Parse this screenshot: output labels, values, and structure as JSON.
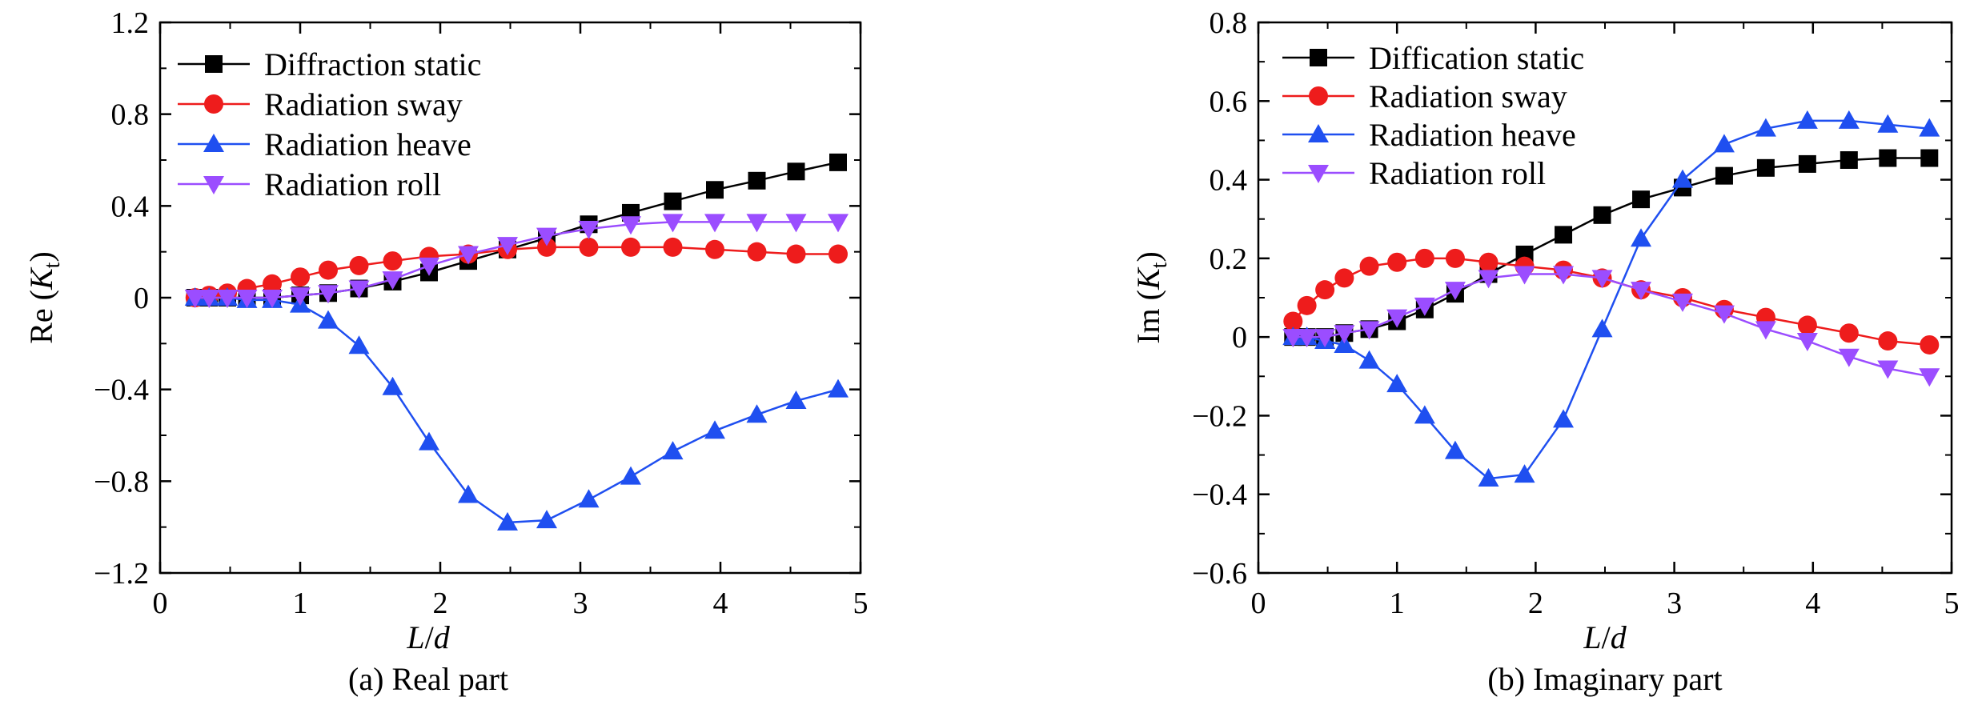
{
  "chart_data": [
    {
      "type": "line",
      "caption": "(a) Real part",
      "xlabel": "L/d",
      "ylabel": "Re (Kt)",
      "xlim": [
        0,
        5
      ],
      "ylim": [
        -1.2,
        1.2
      ],
      "xticks": [
        0,
        1,
        2,
        3,
        4,
        5
      ],
      "yticks": [
        -1.2,
        -0.8,
        -0.4,
        0,
        0.4,
        0.8,
        1.2
      ],
      "xtick_labels": [
        "0",
        "1",
        "2",
        "3",
        "4",
        "5"
      ],
      "ytick_labels": [
        "−1.2",
        "−0.8",
        "−0.4",
        "0",
        "0.4",
        "0.8",
        "1.2"
      ],
      "legend_position": "top-left",
      "series": [
        {
          "name": "Diffraction static",
          "color": "#000000",
          "marker": "square",
          "x": [
            0.25,
            0.35,
            0.48,
            0.62,
            0.8,
            1.0,
            1.2,
            1.42,
            1.66,
            1.92,
            2.2,
            2.48,
            2.76,
            3.06,
            3.36,
            3.66,
            3.96,
            4.26,
            4.54,
            4.84
          ],
          "y": [
            0.0,
            0.0,
            0.0,
            0.0,
            0.0,
            0.01,
            0.02,
            0.04,
            0.07,
            0.11,
            0.16,
            0.21,
            0.26,
            0.32,
            0.37,
            0.42,
            0.47,
            0.51,
            0.55,
            0.59
          ]
        },
        {
          "name": "Radiation sway",
          "color": "#ee1c1c",
          "marker": "circle",
          "x": [
            0.25,
            0.35,
            0.48,
            0.62,
            0.8,
            1.0,
            1.2,
            1.42,
            1.66,
            1.92,
            2.2,
            2.48,
            2.76,
            3.06,
            3.36,
            3.66,
            3.96,
            4.26,
            4.54,
            4.84
          ],
          "y": [
            0.0,
            0.01,
            0.02,
            0.04,
            0.06,
            0.09,
            0.12,
            0.14,
            0.16,
            0.18,
            0.19,
            0.21,
            0.22,
            0.22,
            0.22,
            0.22,
            0.21,
            0.2,
            0.19,
            0.19
          ]
        },
        {
          "name": "Radiation heave",
          "color": "#1f4ff0",
          "marker": "triangle-up",
          "x": [
            0.25,
            0.35,
            0.48,
            0.62,
            0.8,
            1.0,
            1.2,
            1.42,
            1.66,
            1.92,
            2.2,
            2.48,
            2.76,
            3.06,
            3.36,
            3.66,
            3.96,
            4.26,
            4.54,
            4.84
          ],
          "y": [
            0.0,
            0.0,
            0.0,
            -0.01,
            -0.01,
            -0.03,
            -0.1,
            -0.21,
            -0.39,
            -0.63,
            -0.86,
            -0.98,
            -0.97,
            -0.88,
            -0.78,
            -0.67,
            -0.58,
            -0.51,
            -0.45,
            -0.4
          ]
        },
        {
          "name": "Radiation roll",
          "color": "#9b4dff",
          "marker": "triangle-down",
          "x": [
            0.25,
            0.35,
            0.48,
            0.62,
            0.8,
            1.0,
            1.2,
            1.42,
            1.66,
            1.92,
            2.2,
            2.48,
            2.76,
            3.06,
            3.36,
            3.66,
            3.96,
            4.26,
            4.54,
            4.84
          ],
          "y": [
            0.0,
            0.0,
            0.0,
            0.0,
            0.0,
            0.01,
            0.02,
            0.04,
            0.08,
            0.14,
            0.19,
            0.23,
            0.27,
            0.3,
            0.32,
            0.33,
            0.33,
            0.33,
            0.33,
            0.33
          ]
        }
      ]
    },
    {
      "type": "line",
      "caption": "(b) Imaginary part",
      "xlabel": "L/d",
      "ylabel": "Im (Kt)",
      "xlim": [
        0,
        5
      ],
      "ylim": [
        -0.6,
        0.8
      ],
      "xticks": [
        0,
        1,
        2,
        3,
        4,
        5
      ],
      "yticks": [
        -0.6,
        -0.4,
        -0.2,
        0,
        0.2,
        0.4,
        0.6,
        0.8
      ],
      "xtick_labels": [
        "0",
        "1",
        "2",
        "3",
        "4",
        "5"
      ],
      "ytick_labels": [
        "−0.6",
        "−0.4",
        "−0.2",
        "0",
        "0.2",
        "0.4",
        "0.6",
        "0.8"
      ],
      "legend_position": "top-left",
      "series": [
        {
          "name": "Diffication static",
          "color": "#000000",
          "marker": "square",
          "x": [
            0.25,
            0.35,
            0.48,
            0.62,
            0.8,
            1.0,
            1.2,
            1.42,
            1.66,
            1.92,
            2.2,
            2.48,
            2.76,
            3.06,
            3.36,
            3.66,
            3.96,
            4.26,
            4.54,
            4.84
          ],
          "y": [
            0.0,
            0.0,
            0.0,
            0.01,
            0.02,
            0.04,
            0.07,
            0.11,
            0.16,
            0.21,
            0.26,
            0.31,
            0.35,
            0.38,
            0.41,
            0.43,
            0.44,
            0.45,
            0.455,
            0.455
          ]
        },
        {
          "name": "Radiation sway",
          "color": "#ee1c1c",
          "marker": "circle",
          "x": [
            0.25,
            0.35,
            0.48,
            0.62,
            0.8,
            1.0,
            1.2,
            1.42,
            1.66,
            1.92,
            2.2,
            2.48,
            2.76,
            3.06,
            3.36,
            3.66,
            3.96,
            4.26,
            4.54,
            4.84
          ],
          "y": [
            0.04,
            0.08,
            0.12,
            0.15,
            0.18,
            0.19,
            0.2,
            0.2,
            0.19,
            0.18,
            0.17,
            0.15,
            0.12,
            0.1,
            0.07,
            0.05,
            0.03,
            0.01,
            -0.01,
            -0.02
          ]
        },
        {
          "name": "Radiation heave",
          "color": "#1f4ff0",
          "marker": "triangle-up",
          "x": [
            0.25,
            0.35,
            0.48,
            0.62,
            0.8,
            1.0,
            1.2,
            1.42,
            1.66,
            1.92,
            2.2,
            2.48,
            2.76,
            3.06,
            3.36,
            3.66,
            3.96,
            4.26,
            4.54,
            4.84
          ],
          "y": [
            0.0,
            0.0,
            -0.01,
            -0.02,
            -0.06,
            -0.12,
            -0.2,
            -0.29,
            -0.36,
            -0.35,
            -0.21,
            0.02,
            0.25,
            0.4,
            0.49,
            0.53,
            0.55,
            0.55,
            0.54,
            0.53
          ]
        },
        {
          "name": "Radiation roll",
          "color": "#9b4dff",
          "marker": "triangle-down",
          "x": [
            0.25,
            0.35,
            0.48,
            0.62,
            0.8,
            1.0,
            1.2,
            1.42,
            1.66,
            1.92,
            2.2,
            2.48,
            2.76,
            3.06,
            3.36,
            3.66,
            3.96,
            4.26,
            4.54,
            4.84
          ],
          "y": [
            0.0,
            0.0,
            0.0,
            0.01,
            0.02,
            0.05,
            0.08,
            0.12,
            0.15,
            0.16,
            0.16,
            0.15,
            0.12,
            0.09,
            0.06,
            0.02,
            -0.01,
            -0.05,
            -0.08,
            -0.1
          ]
        }
      ]
    }
  ]
}
